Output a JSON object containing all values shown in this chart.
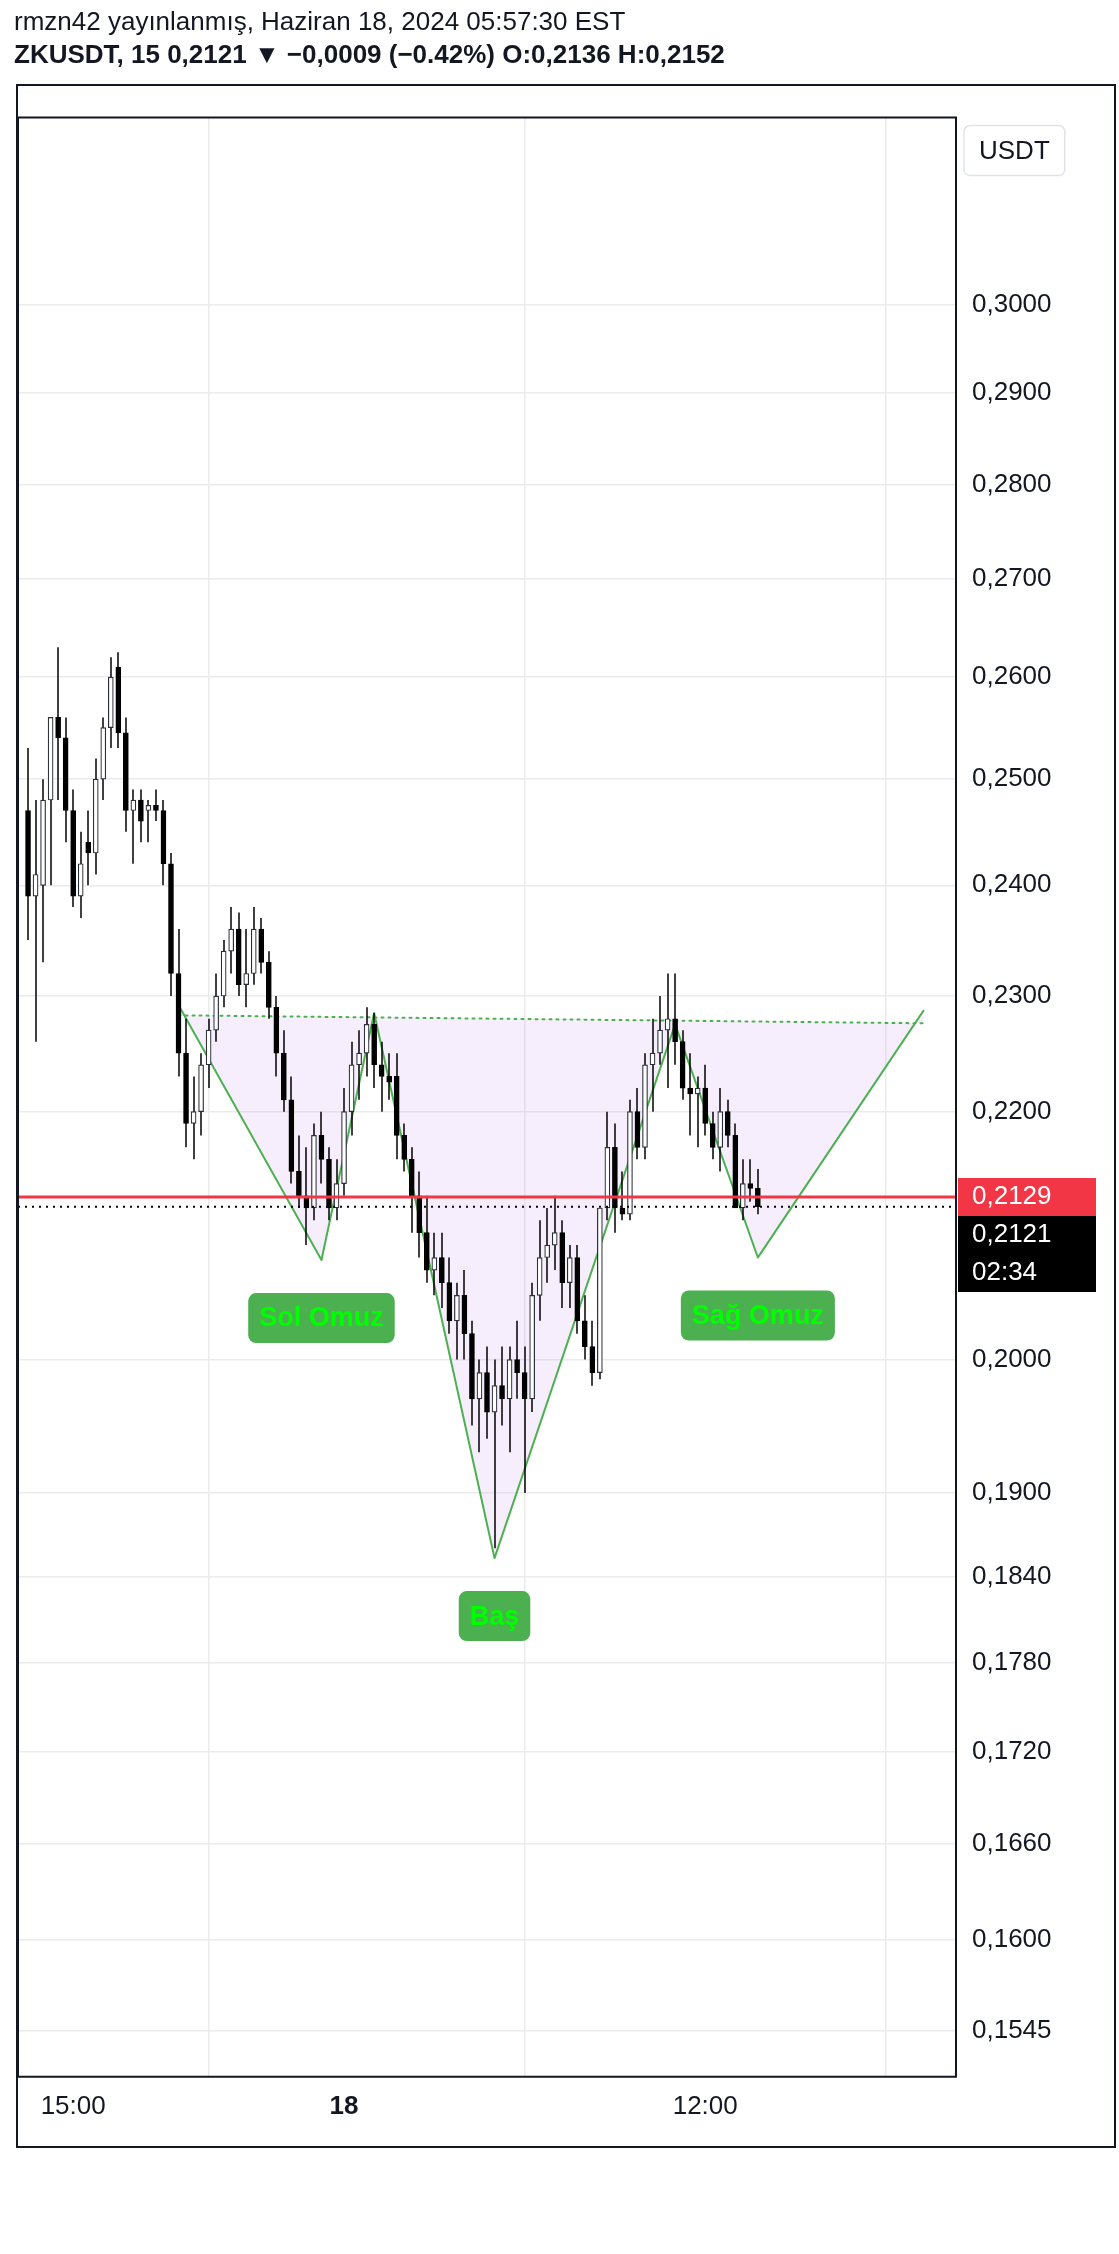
{
  "chart_data": {
    "type": "candlestick",
    "title": "rmzn42 yayınlanmış, Haziran 18, 2024 05:57:30 EST",
    "subtitle": "ZKUSDT, 15  0,2121 ▼ −0,0009 (−0.42%) O:0,2136 H:0,2152",
    "ylabel": "USDT",
    "x": [
      "2024-06-17T13:30",
      "2024-06-17T13:45",
      "2024-06-17T14:00",
      "2024-06-17T14:15",
      "2024-06-17T14:30",
      "2024-06-17T14:45",
      "2024-06-17T15:00",
      "2024-06-17T15:15",
      "2024-06-17T15:30",
      "2024-06-17T15:45",
      "2024-06-17T16:00",
      "2024-06-17T16:15",
      "2024-06-17T16:30",
      "2024-06-17T16:45",
      "2024-06-17T17:00",
      "2024-06-17T17:15",
      "2024-06-17T17:30",
      "2024-06-17T17:45",
      "2024-06-17T18:00",
      "2024-06-17T18:15",
      "2024-06-17T18:30",
      "2024-06-17T18:45",
      "2024-06-17T19:00",
      "2024-06-17T19:15",
      "2024-06-17T19:30",
      "2024-06-17T19:45",
      "2024-06-17T20:00",
      "2024-06-17T20:15",
      "2024-06-17T20:30",
      "2024-06-17T20:45",
      "2024-06-17T21:00",
      "2024-06-17T21:15",
      "2024-06-17T21:30",
      "2024-06-17T21:45",
      "2024-06-17T22:00",
      "2024-06-17T22:15",
      "2024-06-17T22:30",
      "2024-06-17T22:45",
      "2024-06-17T23:00",
      "2024-06-17T23:15",
      "2024-06-17T23:30",
      "2024-06-17T23:45",
      "2024-06-18T00:00",
      "2024-06-18T00:15",
      "2024-06-18T00:30",
      "2024-06-18T00:45",
      "2024-06-18T01:00",
      "2024-06-18T01:15",
      "2024-06-18T01:30",
      "2024-06-18T01:45",
      "2024-06-18T02:00",
      "2024-06-18T02:15",
      "2024-06-18T02:30",
      "2024-06-18T02:45",
      "2024-06-18T03:00",
      "2024-06-18T03:15",
      "2024-06-18T03:30",
      "2024-06-18T03:45",
      "2024-06-18T04:00",
      "2024-06-18T04:15",
      "2024-06-18T04:30",
      "2024-06-18T04:45",
      "2024-06-18T05:00",
      "2024-06-18T05:15",
      "2024-06-18T05:30",
      "2024-06-18T05:45",
      "2024-06-18T06:00",
      "2024-06-18T06:15",
      "2024-06-18T06:30",
      "2024-06-18T06:45",
      "2024-06-18T07:00",
      "2024-06-18T07:15",
      "2024-06-18T07:30",
      "2024-06-18T07:45",
      "2024-06-18T08:00",
      "2024-06-18T08:15",
      "2024-06-18T08:30",
      "2024-06-18T08:45",
      "2024-06-18T09:00",
      "2024-06-18T09:15",
      "2024-06-18T09:30",
      "2024-06-18T09:45",
      "2024-06-18T10:00",
      "2024-06-18T10:15",
      "2024-06-18T10:30",
      "2024-06-18T10:45",
      "2024-06-18T11:00",
      "2024-06-18T11:15",
      "2024-06-18T11:30",
      "2024-06-18T11:45",
      "2024-06-18T12:00",
      "2024-06-18T12:15",
      "2024-06-18T12:30",
      "2024-06-18T12:45",
      "2024-06-18T13:00",
      "2024-06-18T13:15",
      "2024-06-18T13:30",
      "2024-06-18T13:45"
    ],
    "ohlc": [
      [
        0.247,
        0.253,
        0.235,
        0.239
      ],
      [
        0.239,
        0.248,
        0.226,
        0.241
      ],
      [
        0.24,
        0.25,
        0.233,
        0.248
      ],
      [
        0.248,
        0.256,
        0.24,
        0.256
      ],
      [
        0.256,
        0.263,
        0.248,
        0.254
      ],
      [
        0.254,
        0.256,
        0.244,
        0.247
      ],
      [
        0.247,
        0.249,
        0.238,
        0.239
      ],
      [
        0.239,
        0.245,
        0.237,
        0.242
      ],
      [
        0.244,
        0.247,
        0.24,
        0.243
      ],
      [
        0.243,
        0.252,
        0.241,
        0.25
      ],
      [
        0.25,
        0.256,
        0.248,
        0.255
      ],
      [
        0.255,
        0.262,
        0.253,
        0.26
      ],
      [
        0.261,
        0.2625,
        0.253,
        0.2545
      ],
      [
        0.2545,
        0.256,
        0.245,
        0.247
      ],
      [
        0.247,
        0.249,
        0.242,
        0.248
      ],
      [
        0.248,
        0.249,
        0.244,
        0.246
      ],
      [
        0.247,
        0.248,
        0.244,
        0.2475
      ],
      [
        0.2475,
        0.249,
        0.246,
        0.247
      ],
      [
        0.247,
        0.248,
        0.24,
        0.242
      ],
      [
        0.242,
        0.243,
        0.23,
        0.232
      ],
      [
        0.232,
        0.236,
        0.223,
        0.225
      ],
      [
        0.225,
        0.228,
        0.217,
        0.219
      ],
      [
        0.219,
        0.223,
        0.216,
        0.22
      ],
      [
        0.22,
        0.225,
        0.218,
        0.224
      ],
      [
        0.224,
        0.228,
        0.222,
        0.227
      ],
      [
        0.227,
        0.232,
        0.226,
        0.23
      ],
      [
        0.23,
        0.235,
        0.229,
        0.234
      ],
      [
        0.234,
        0.238,
        0.232,
        0.236
      ],
      [
        0.236,
        0.2375,
        0.23,
        0.231
      ],
      [
        0.231,
        0.236,
        0.229,
        0.232
      ],
      [
        0.232,
        0.238,
        0.231,
        0.236
      ],
      [
        0.236,
        0.237,
        0.232,
        0.233
      ],
      [
        0.233,
        0.234,
        0.228,
        0.229
      ],
      [
        0.229,
        0.23,
        0.223,
        0.225
      ],
      [
        0.225,
        0.227,
        0.22,
        0.221
      ],
      [
        0.221,
        0.223,
        0.214,
        0.215
      ],
      [
        0.215,
        0.218,
        0.212,
        0.213
      ],
      [
        0.213,
        0.217,
        0.209,
        0.212
      ],
      [
        0.212,
        0.219,
        0.211,
        0.218
      ],
      [
        0.218,
        0.22,
        0.214,
        0.216
      ],
      [
        0.216,
        0.217,
        0.211,
        0.212
      ],
      [
        0.212,
        0.216,
        0.211,
        0.214
      ],
      [
        0.214,
        0.222,
        0.213,
        0.22
      ],
      [
        0.22,
        0.226,
        0.218,
        0.224
      ],
      [
        0.224,
        0.227,
        0.221,
        0.225
      ],
      [
        0.225,
        0.229,
        0.223,
        0.2275
      ],
      [
        0.2275,
        0.2285,
        0.222,
        0.224
      ],
      [
        0.224,
        0.226,
        0.22,
        0.223
      ],
      [
        0.223,
        0.225,
        0.221,
        0.2225
      ],
      [
        0.223,
        0.225,
        0.216,
        0.218
      ],
      [
        0.218,
        0.219,
        0.215,
        0.216
      ],
      [
        0.216,
        0.217,
        0.21,
        0.213
      ],
      [
        0.213,
        0.215,
        0.208,
        0.21
      ],
      [
        0.21,
        0.213,
        0.206,
        0.207
      ],
      [
        0.207,
        0.21,
        0.205,
        0.208
      ],
      [
        0.208,
        0.21,
        0.204,
        0.206
      ],
      [
        0.206,
        0.208,
        0.202,
        0.203
      ],
      [
        0.203,
        0.206,
        0.2,
        0.205
      ],
      [
        0.205,
        0.207,
        0.2,
        0.202
      ],
      [
        0.202,
        0.203,
        0.195,
        0.197
      ],
      [
        0.197,
        0.2,
        0.193,
        0.199
      ],
      [
        0.199,
        0.201,
        0.194,
        0.196
      ],
      [
        0.196,
        0.2,
        0.186,
        0.198
      ],
      [
        0.198,
        0.201,
        0.195,
        0.197
      ],
      [
        0.197,
        0.201,
        0.193,
        0.2
      ],
      [
        0.2,
        0.203,
        0.197,
        0.199
      ],
      [
        0.199,
        0.201,
        0.19,
        0.197
      ],
      [
        0.197,
        0.206,
        0.196,
        0.205
      ],
      [
        0.205,
        0.211,
        0.203,
        0.208
      ],
      [
        0.208,
        0.212,
        0.206,
        0.209
      ],
      [
        0.209,
        0.213,
        0.207,
        0.21
      ],
      [
        0.21,
        0.211,
        0.204,
        0.206
      ],
      [
        0.206,
        0.209,
        0.204,
        0.208
      ],
      [
        0.208,
        0.209,
        0.202,
        0.203
      ],
      [
        0.203,
        0.205,
        0.2,
        0.201
      ],
      [
        0.201,
        0.203,
        0.198,
        0.199
      ],
      [
        0.199,
        0.212,
        0.1985,
        0.212
      ],
      [
        0.212,
        0.22,
        0.211,
        0.217
      ],
      [
        0.217,
        0.219,
        0.21,
        0.212
      ],
      [
        0.212,
        0.215,
        0.211,
        0.2115
      ],
      [
        0.2115,
        0.221,
        0.211,
        0.22
      ],
      [
        0.22,
        0.222,
        0.216,
        0.217
      ],
      [
        0.217,
        0.225,
        0.216,
        0.224
      ],
      [
        0.224,
        0.228,
        0.22,
        0.225
      ],
      [
        0.225,
        0.23,
        0.224,
        0.227
      ],
      [
        0.227,
        0.232,
        0.222,
        0.228
      ],
      [
        0.228,
        0.232,
        0.224,
        0.226
      ],
      [
        0.226,
        0.227,
        0.221,
        0.222
      ],
      [
        0.222,
        0.225,
        0.218,
        0.2215
      ],
      [
        0.2215,
        0.223,
        0.217,
        0.222
      ],
      [
        0.222,
        0.224,
        0.218,
        0.219
      ],
      [
        0.219,
        0.22,
        0.216,
        0.217
      ],
      [
        0.217,
        0.222,
        0.215,
        0.22
      ],
      [
        0.22,
        0.221,
        0.217,
        0.218
      ],
      [
        0.218,
        0.219,
        0.212,
        0.212
      ],
      [
        0.212,
        0.216,
        0.211,
        0.214
      ],
      [
        0.214,
        0.216,
        0.2125,
        0.2136
      ],
      [
        0.2136,
        0.2152,
        0.2115,
        0.2121
      ]
    ],
    "series": [
      {
        "type": "line",
        "color": "#4caf50",
        "x": [
          "2024-06-17T18:30",
          "2024-06-17T23:15",
          "2024-06-18T01:00",
          "2024-06-18T05:00",
          "2024-06-18T11:00",
          "2024-06-18T13:45",
          "2024-06-18T19:15"
        ],
        "values": [
          0.2292,
          0.2078,
          0.2285,
          0.1853,
          0.2275,
          0.208,
          0.2287
        ]
      },
      {
        "type": "line",
        "color": "#4caf50",
        "line_style": "dotted",
        "x": [
          "2024-06-17T18:30",
          "2024-06-18T19:15"
        ],
        "values": [
          0.2283,
          0.2276
        ]
      }
    ],
    "xlim": [
      "2024-06-17T13:10",
      "2024-06-18T20:20"
    ],
    "xticks": [
      {
        "value": "2024-06-17T15:00",
        "label": "15:00"
      },
      {
        "value": "2024-06-18T00:00",
        "label": "18"
      },
      {
        "value": "2024-06-18T12:00",
        "label": "12:00"
      }
    ],
    "ylim": [
      0.1518,
      0.3224
    ],
    "yticks": [
      {
        "value": 0.3,
        "label": "0,3000"
      },
      {
        "value": 0.29,
        "label": "0,2900"
      },
      {
        "value": 0.28,
        "label": "0,2800"
      },
      {
        "value": 0.27,
        "label": "0,2700"
      },
      {
        "value": 0.26,
        "label": "0,2600"
      },
      {
        "value": 0.25,
        "label": "0,2500"
      },
      {
        "value": 0.24,
        "label": "0,2400"
      },
      {
        "value": 0.23,
        "label": "0,2300"
      },
      {
        "value": 0.22,
        "label": "0,2200"
      },
      {
        "value": 0.2,
        "label": "0,2000"
      },
      {
        "value": 0.19,
        "label": "0,1900"
      },
      {
        "value": 0.184,
        "label": "0,1840"
      },
      {
        "value": 0.178,
        "label": "0,1780"
      },
      {
        "value": 0.172,
        "label": "0,1720"
      },
      {
        "value": 0.166,
        "label": "0,1660"
      },
      {
        "value": 0.16,
        "label": "0,1600"
      },
      {
        "value": 0.1545,
        "label": "0,1545"
      }
    ],
    "log": true,
    "grid": true,
    "legend": false,
    "ref_lines": [
      {
        "axis": "y",
        "value": 0.2129,
        "label": "0,2129",
        "color": "#f23645",
        "line_style": "solid"
      },
      {
        "axis": "y",
        "value": 0.2121,
        "label": "0,2121",
        "color": "#000000",
        "line_style": "dotted"
      }
    ],
    "annotations": [
      {
        "text": "Sol Omuz",
        "x": "2024-06-17T23:15",
        "y": 0.2078
      },
      {
        "text": "Baş",
        "x": "2024-06-18T05:00",
        "y": 0.1853
      },
      {
        "text": "Sağ Omuz",
        "x": "2024-06-18T13:45",
        "y": 0.208
      },
      "02:34"
    ]
  }
}
